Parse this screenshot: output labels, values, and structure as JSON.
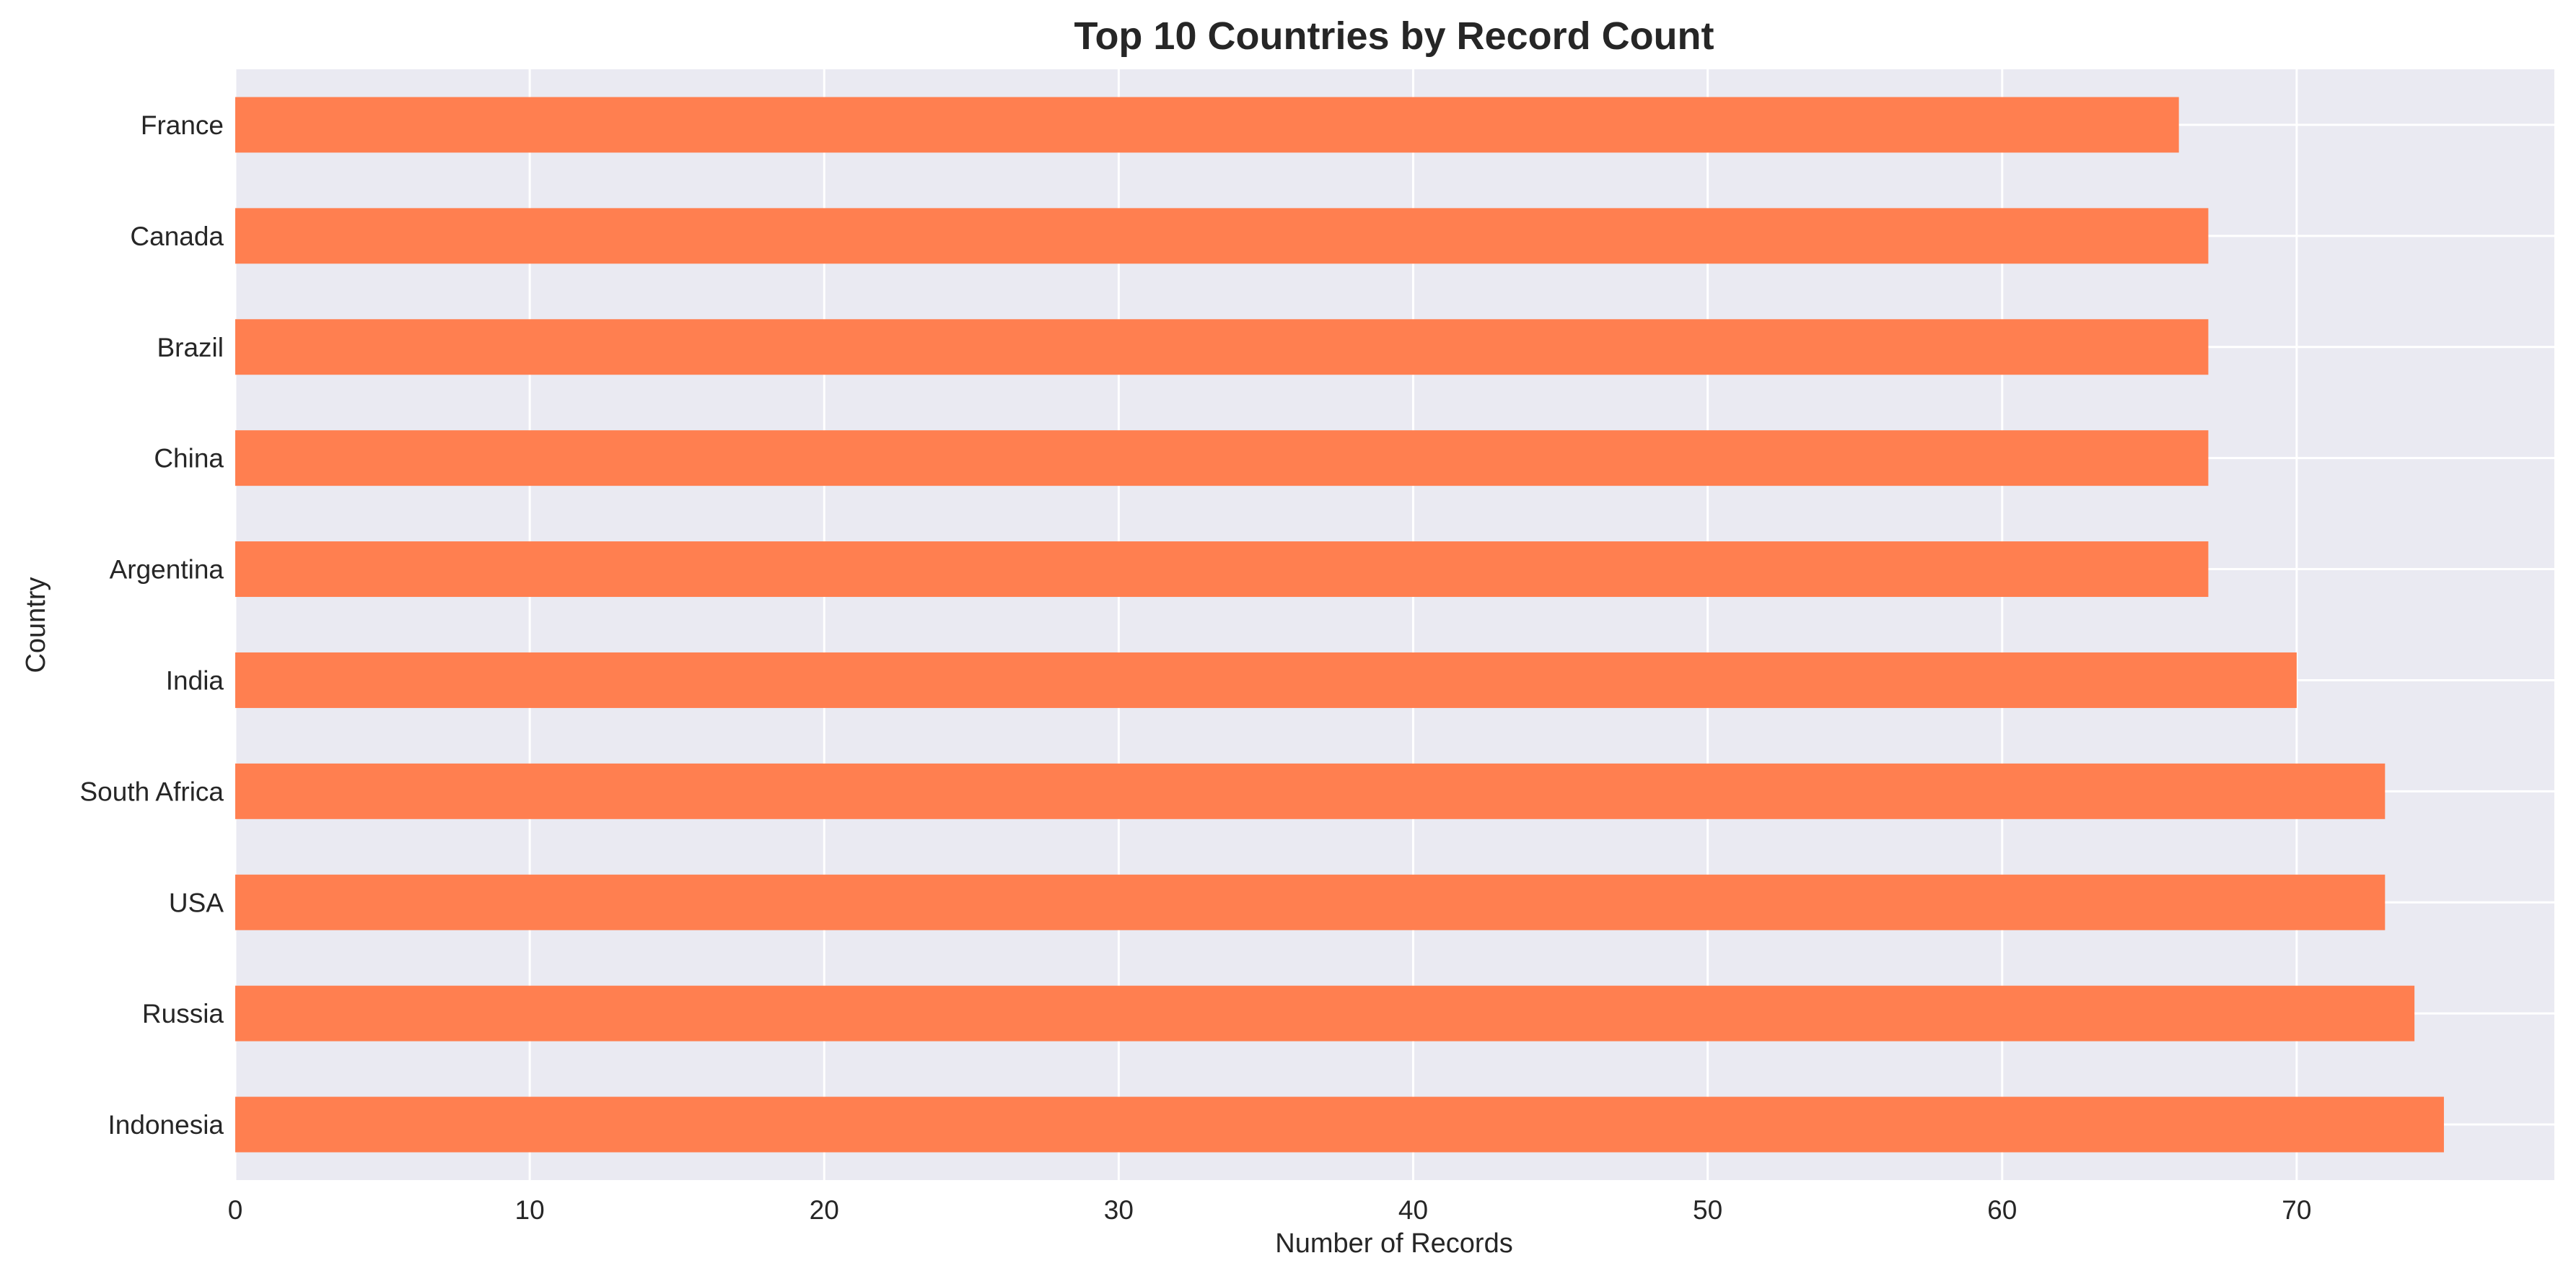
{
  "chart_data": {
    "type": "bar",
    "orientation": "horizontal",
    "title": "Top 10 Countries by Record Count",
    "xlabel": "Number of Records",
    "ylabel": "Country",
    "categories": [
      "France",
      "Canada",
      "Brazil",
      "China",
      "Argentina",
      "India",
      "South Africa",
      "USA",
      "Russia",
      "Indonesia"
    ],
    "values": [
      66,
      67,
      67,
      67,
      67,
      70,
      73,
      73,
      74,
      75
    ],
    "xlim": [
      0,
      78.75
    ],
    "xticks": [
      0,
      10,
      20,
      30,
      40,
      50,
      60,
      70
    ],
    "grid": true,
    "legend": "none",
    "colors": {
      "bar": "#ff7f50",
      "plot_background": "#eaeaf2",
      "grid": "#ffffff",
      "text": "#262626"
    }
  }
}
